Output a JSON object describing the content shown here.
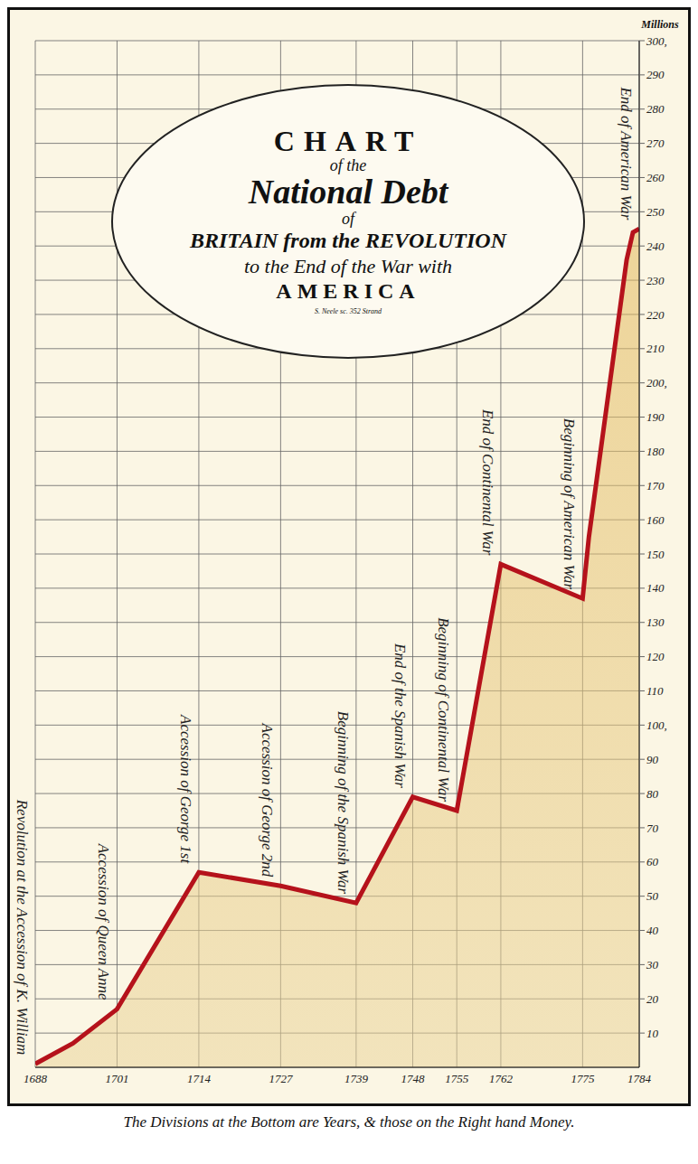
{
  "chart_data": {
    "type": "area",
    "title": [
      "CHART",
      "of the",
      "National Debt",
      "of",
      "BRITAIN from the REVOLUTION",
      "to the End of the War with",
      "AMERICA"
    ],
    "credit": "S. Neele sc. 352 Strand",
    "y_label": "Millions",
    "footnote": "The Divisions at the Bottom are Years, & those on the Right hand Money.",
    "x": [
      1688,
      1694,
      1701,
      1714,
      1727,
      1739,
      1748,
      1755,
      1762,
      1775,
      1776,
      1782,
      1783,
      1784
    ],
    "values": [
      1,
      7,
      17,
      57,
      53,
      48,
      79,
      75,
      147,
      137,
      155,
      236,
      244,
      245
    ],
    "color": "#b5121b",
    "xlim": [
      1688,
      1784
    ],
    "xticks": [
      1688,
      1701,
      1714,
      1727,
      1739,
      1748,
      1755,
      1762,
      1775,
      1784
    ],
    "ylim": [
      0,
      300
    ],
    "yticks": [
      10,
      20,
      30,
      40,
      50,
      60,
      70,
      80,
      90,
      {
        "value": 100,
        "label": "100,"
      },
      110,
      120,
      130,
      140,
      150,
      160,
      170,
      180,
      190,
      {
        "value": 200,
        "label": "200,"
      },
      210,
      220,
      230,
      240,
      250,
      260,
      270,
      280,
      290,
      {
        "value": 300,
        "label": "300,"
      }
    ],
    "grid": true,
    "annotations": [
      {
        "x": 1688,
        "text": "Revolution at the Accession of K. William"
      },
      {
        "x": 1701,
        "text": "Accession of Queen Anne"
      },
      {
        "x": 1714,
        "text": "Accession of George 1st"
      },
      {
        "x": 1727,
        "text": "Accession of George 2nd"
      },
      {
        "x": 1739,
        "text": "Beginning of the Spanish War"
      },
      {
        "x": 1748,
        "text": "End of the Spanish War"
      },
      {
        "x": 1755,
        "text": "Beginning of Continental War"
      },
      {
        "x": 1762,
        "text": "End of Continental War"
      },
      {
        "x": 1775,
        "text": "Beginning of American War"
      },
      {
        "x": 1784,
        "text": "End of American War"
      }
    ]
  }
}
